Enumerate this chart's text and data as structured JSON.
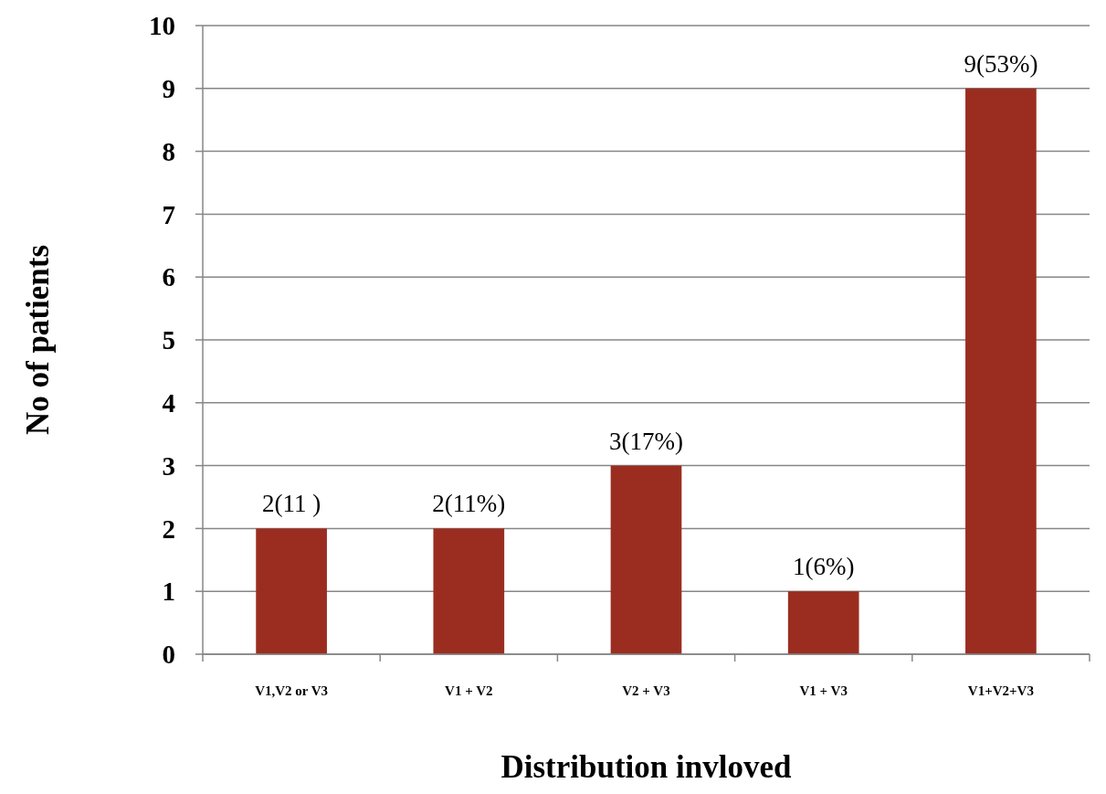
{
  "chart_data": {
    "type": "bar",
    "xlabel": "Distribution invloved",
    "ylabel": "No of patients",
    "categories": [
      "V1,V2 or V3",
      "V1 + V2",
      "V2 + V3",
      "V1 + V3",
      "V1+V2+V3"
    ],
    "values": [
      2,
      2,
      3,
      1,
      9
    ],
    "value_labels": [
      "2(11 )",
      "2(11%)",
      "3(17%)",
      "1(6%)",
      "9(53%)"
    ],
    "color": "#9b2d20",
    "ylim": [
      0,
      10
    ],
    "yticks": [
      0,
      1,
      2,
      3,
      4,
      5,
      6,
      7,
      8,
      9,
      10
    ],
    "grid": "y"
  }
}
